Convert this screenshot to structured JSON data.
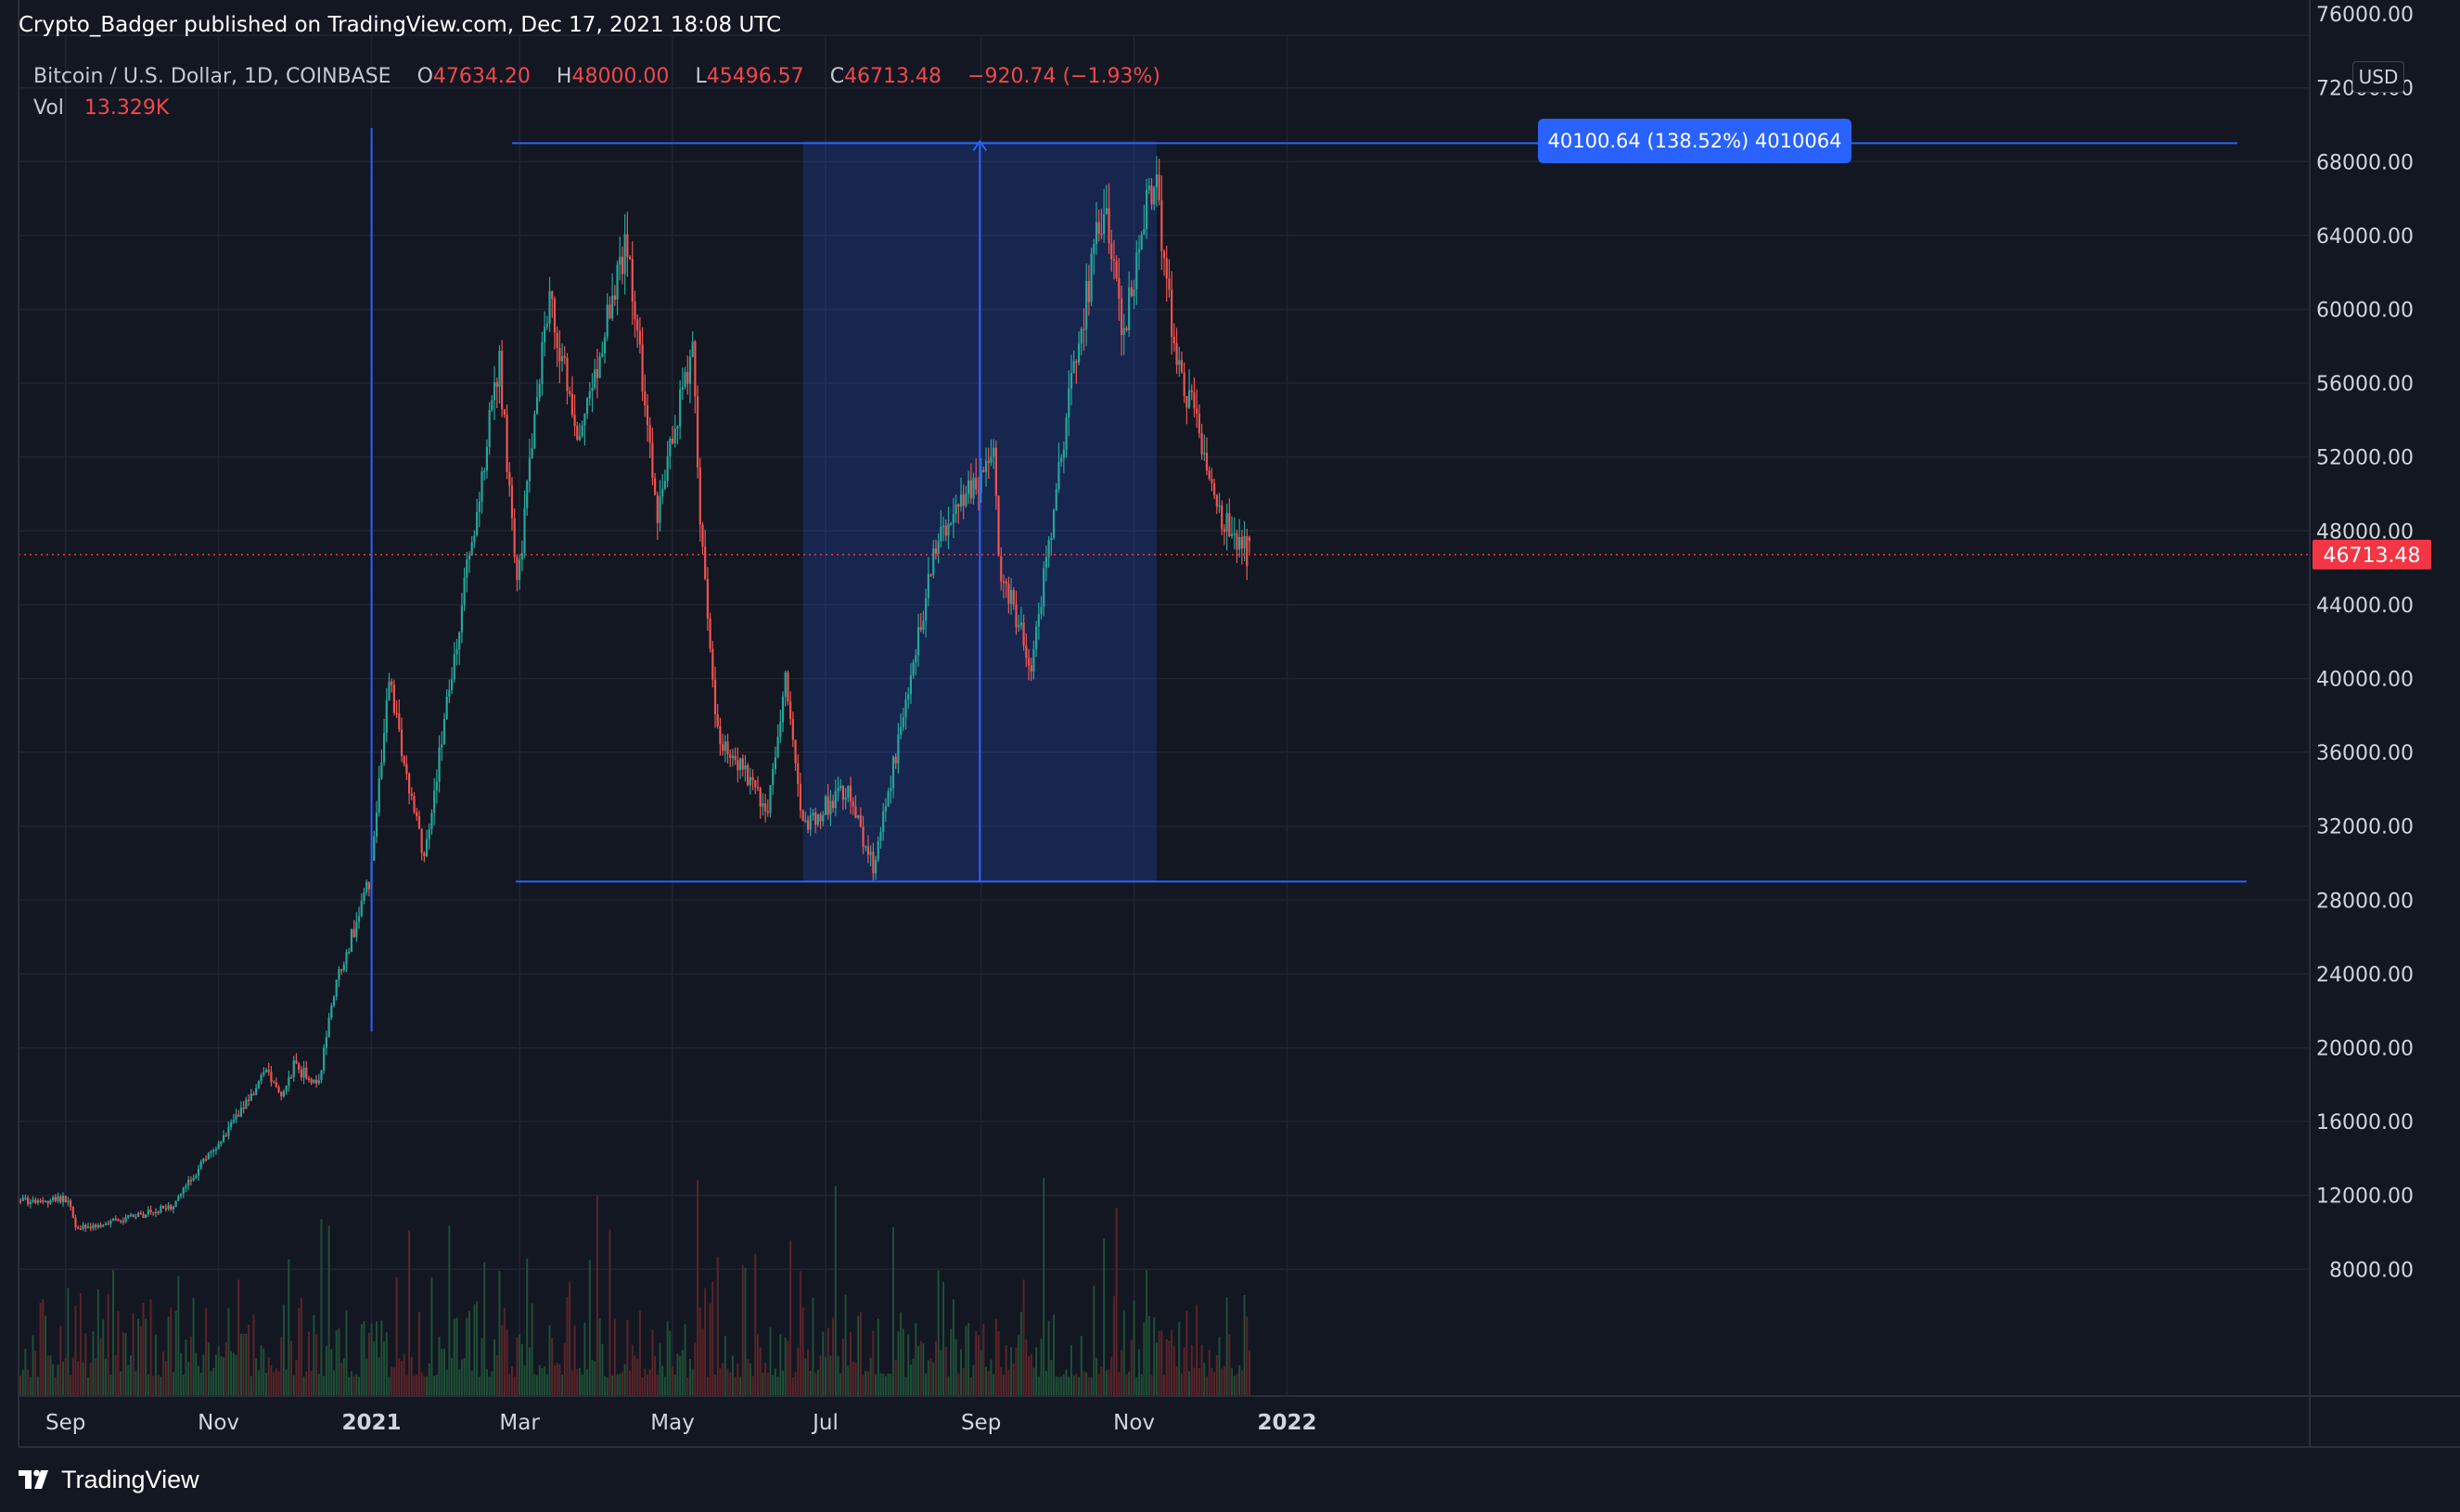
{
  "header": {
    "published": "Crypto_Badger published on TradingView.com, Dec 17, 2021 18:08 UTC"
  },
  "legend": {
    "symbol": "Bitcoin / U.S. Dollar, 1D, COINBASE",
    "o_label": "O",
    "o_value": "47634.20",
    "h_label": "H",
    "h_value": "48000.00",
    "l_label": "L",
    "l_value": "45496.57",
    "c_label": "C",
    "c_value": "46713.48",
    "change": "−920.74 (−1.93%)",
    "vol_label": "Vol",
    "vol_value": "13.329K"
  },
  "currency_button": "USD",
  "measure_label": "40100.64 (138.52%) 4010064",
  "footer": {
    "brand": "TradingView"
  },
  "colors": {
    "up": "#26a69a",
    "down": "#ef5350",
    "drawing": "#2962ff",
    "background": "#131722",
    "grid": "#1f2433",
    "price_tag": "#f23645"
  },
  "chart_data": {
    "type": "candlestick",
    "symbol": "BTCUSD",
    "timeframe": "1D",
    "x_tick_labels": [
      "Sep",
      "Nov",
      "2021",
      "Mar",
      "May",
      "Jul",
      "Sep",
      "Nov",
      "2022"
    ],
    "y_tick_labels": [
      "8000.00",
      "12000.00",
      "16000.00",
      "20000.00",
      "24000.00",
      "28000.00",
      "32000.00",
      "36000.00",
      "40000.00",
      "44000.00",
      "48000.00",
      "52000.00",
      "56000.00",
      "60000.00",
      "64000.00",
      "68000.00",
      "72000.00",
      "76000.00"
    ],
    "ylim": [
      4000,
      76000
    ],
    "last_price": "46713.48",
    "close_anchors": [
      [
        "2020-08-14",
        11700
      ],
      [
        "2020-09-02",
        11800
      ],
      [
        "2020-09-05",
        10200
      ],
      [
        "2020-09-25",
        10700
      ],
      [
        "2020-10-13",
        11400
      ],
      [
        "2020-10-21",
        12900
      ],
      [
        "2020-11-05",
        15600
      ],
      [
        "2020-11-20",
        18700
      ],
      [
        "2020-11-26",
        17100
      ],
      [
        "2020-12-01",
        19000
      ],
      [
        "2020-12-11",
        18000
      ],
      [
        "2020-12-17",
        23000
      ],
      [
        "2020-12-31",
        29000
      ],
      [
        "2021-01-08",
        40000
      ],
      [
        "2021-01-22",
        30000
      ],
      [
        "2021-02-08",
        46000
      ],
      [
        "2021-02-21",
        57000
      ],
      [
        "2021-02-28",
        45000
      ],
      [
        "2021-03-13",
        61000
      ],
      [
        "2021-03-24",
        53000
      ],
      [
        "2021-04-13",
        63500
      ],
      [
        "2021-04-25",
        49000
      ],
      [
        "2021-05-09",
        58000
      ],
      [
        "2021-05-12",
        49000
      ],
      [
        "2021-05-19",
        37000
      ],
      [
        "2021-06-08",
        33000
      ],
      [
        "2021-06-15",
        40000
      ],
      [
        "2021-06-22",
        32000
      ],
      [
        "2021-07-09",
        34000
      ],
      [
        "2021-07-20",
        29800
      ],
      [
        "2021-08-14",
        47000
      ],
      [
        "2021-08-23",
        49500
      ],
      [
        "2021-09-06",
        52000
      ],
      [
        "2021-09-08",
        46500
      ],
      [
        "2021-09-21",
        40500
      ],
      [
        "2021-10-06",
        55000
      ],
      [
        "2021-10-20",
        66000
      ],
      [
        "2021-10-27",
        58500
      ],
      [
        "2021-11-09",
        67500
      ],
      [
        "2021-11-18",
        57000
      ],
      [
        "2021-11-26",
        54000
      ],
      [
        "2021-12-04",
        49000
      ],
      [
        "2021-12-17",
        46713
      ]
    ],
    "drawings": {
      "horizontal_lines": [
        69000,
        29000
      ],
      "vertical_line_date": "2021-01-01",
      "price_range": {
        "from_date": "2021-06-22",
        "to_date": "2021-11-10",
        "low": 29000,
        "high": 69100
      }
    }
  }
}
